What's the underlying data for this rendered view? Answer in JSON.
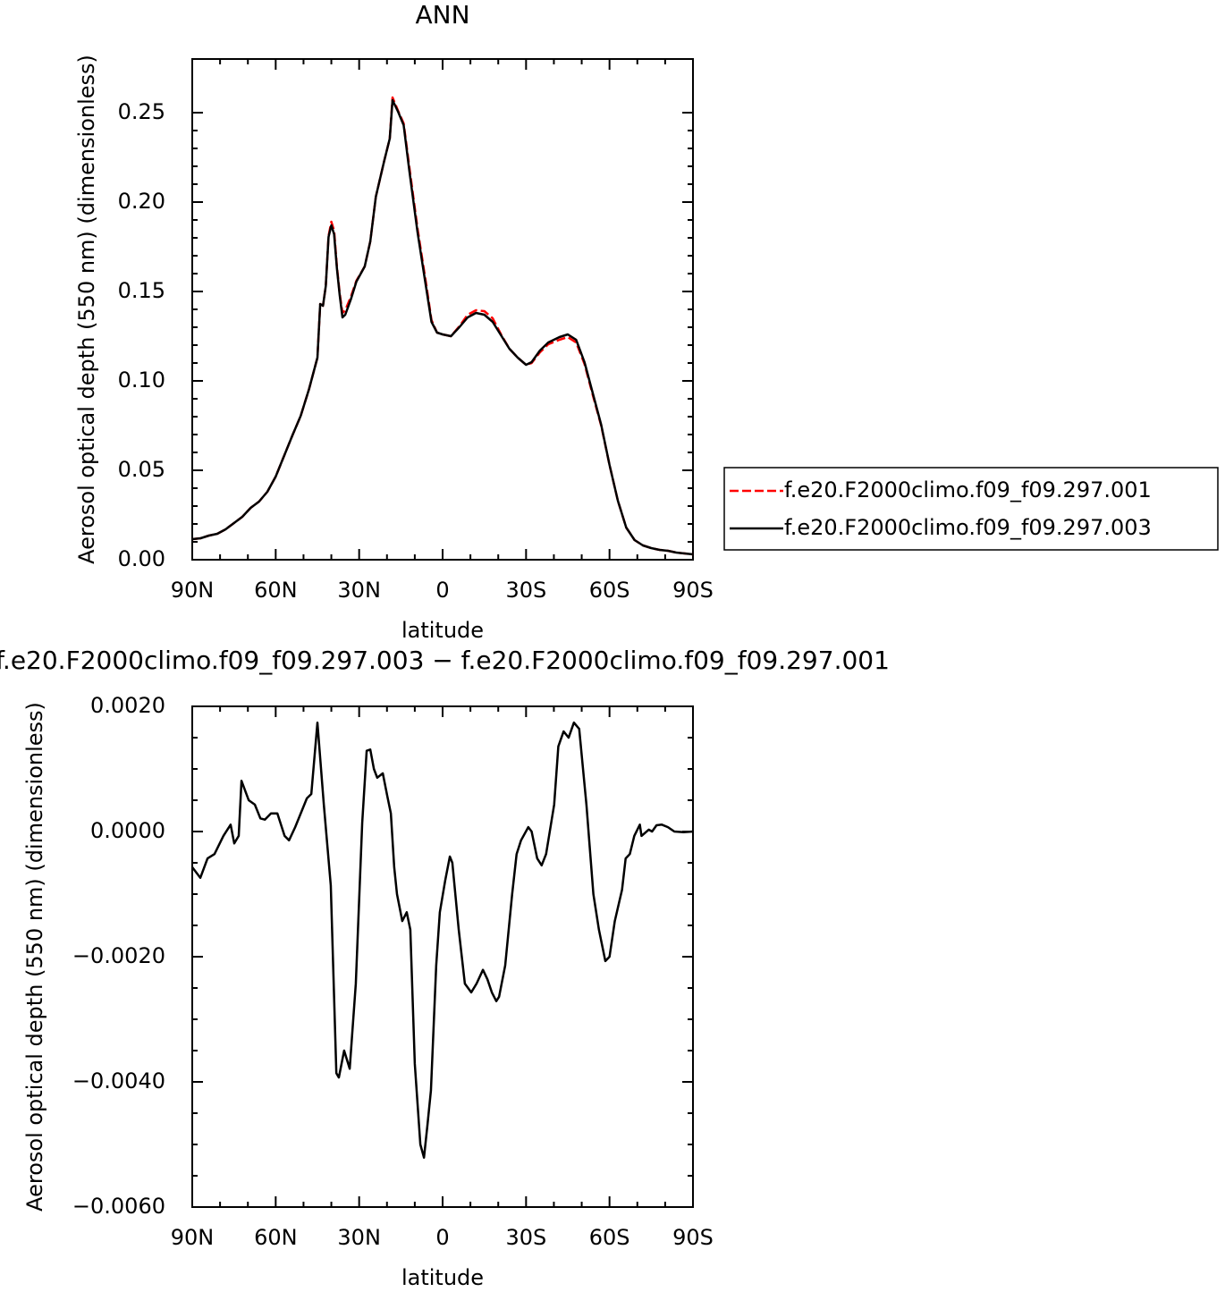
{
  "chart_data": [
    {
      "type": "line",
      "title": "ANN",
      "x_label": "latitude",
      "y_label": "Aerosol optical depth (550 nm) (dimensionless)",
      "x": [
        90,
        87,
        84,
        81,
        78,
        75,
        72,
        69,
        66,
        63,
        60,
        57,
        54,
        51,
        48,
        45,
        44,
        43,
        42,
        41,
        40,
        39,
        38,
        37,
        36,
        35,
        33,
        31,
        28,
        26,
        24,
        21,
        19,
        18,
        16,
        14,
        12,
        9,
        6,
        4,
        2,
        0,
        -3,
        -6,
        -9,
        -12,
        -15,
        -18,
        -21,
        -24,
        -27,
        -30,
        -32,
        -35,
        -38,
        -42,
        -45,
        -48,
        -51,
        -54,
        -57,
        -60,
        -63,
        -66,
        -69,
        -72,
        -75,
        -78,
        -81,
        -84,
        -87,
        -90
      ],
      "series": [
        {
          "name": "f.e20.F2000climo.f09_f09.297.001",
          "color": "#ff0000",
          "dash": true,
          "values": [
            0.0115,
            0.012,
            0.0135,
            0.0145,
            0.017,
            0.0205,
            0.024,
            0.029,
            0.0325,
            0.038,
            0.0465,
            0.058,
            0.0695,
            0.0805,
            0.0955,
            0.113,
            0.143,
            0.142,
            0.153,
            0.181,
            0.189,
            0.184,
            0.164,
            0.149,
            0.138,
            0.1395,
            0.147,
            0.156,
            0.164,
            0.178,
            0.203,
            0.223,
            0.2355,
            0.2585,
            0.251,
            0.244,
            0.22,
            0.185,
            0.155,
            0.134,
            0.127,
            0.126,
            0.125,
            0.1305,
            0.137,
            0.1395,
            0.139,
            0.135,
            0.126,
            0.118,
            0.113,
            0.109,
            0.11,
            0.116,
            0.1205,
            0.123,
            0.1245,
            0.1215,
            0.1095,
            0.092,
            0.075,
            0.053,
            0.033,
            0.018,
            0.011,
            0.008,
            0.0065,
            0.0055,
            0.005,
            0.004,
            0.0035,
            0.003
          ]
        },
        {
          "name": "f.e20.F2000climo.f09_f09.297.003",
          "color": "#000000",
          "dash": false,
          "values": [
            0.0115,
            0.012,
            0.0135,
            0.0145,
            0.017,
            0.0205,
            0.024,
            0.029,
            0.0325,
            0.038,
            0.0465,
            0.058,
            0.0695,
            0.0805,
            0.0955,
            0.113,
            0.143,
            0.142,
            0.153,
            0.1805,
            0.187,
            0.182,
            0.163,
            0.148,
            0.1355,
            0.137,
            0.1455,
            0.1555,
            0.164,
            0.178,
            0.203,
            0.223,
            0.2355,
            0.257,
            0.2505,
            0.243,
            0.218,
            0.183,
            0.153,
            0.133,
            0.127,
            0.126,
            0.125,
            0.13,
            0.1355,
            0.138,
            0.137,
            0.133,
            0.1255,
            0.118,
            0.113,
            0.109,
            0.1105,
            0.117,
            0.1215,
            0.1245,
            0.126,
            0.123,
            0.1105,
            0.093,
            0.0755,
            0.053,
            0.033,
            0.018,
            0.011,
            0.008,
            0.0065,
            0.0055,
            0.005,
            0.004,
            0.0035,
            0.003
          ]
        }
      ],
      "xlim": [
        90,
        -90
      ],
      "xticks": [
        {
          "value": 90,
          "label": "90N"
        },
        {
          "value": 60,
          "label": "60N"
        },
        {
          "value": 30,
          "label": "30N"
        },
        0,
        {
          "value": -30,
          "label": "30S"
        },
        {
          "value": -60,
          "label": "60S"
        },
        {
          "value": -90,
          "label": "90S"
        }
      ],
      "ylim": [
        0,
        0.28
      ],
      "yticks": [
        {
          "value": 0,
          "label": "0.00"
        },
        {
          "value": 0.05,
          "label": "0.05"
        },
        {
          "value": 0.1,
          "label": "0.10"
        },
        {
          "value": 0.15,
          "label": "0.15"
        },
        {
          "value": 0.2,
          "label": "0.20"
        },
        {
          "value": 0.25,
          "label": "0.25"
        }
      ],
      "legend": "right"
    },
    {
      "type": "line",
      "title": "f.e20.F2000climo.f09_f09.297.003 − f.e20.F2000climo.f09_f09.297.001",
      "x_label": "latitude",
      "y_label": "Aerosol optical depth (550 nm) (dimensionless)",
      "x": [
        90,
        87.1,
        84.5,
        82,
        78.8,
        76.2,
        74.9,
        73.3,
        72.3,
        69.7,
        67.5,
        65.5,
        63.9,
        61.7,
        59.4,
        56.8,
        55.2,
        53,
        48.8,
        47.2,
        45,
        42.7,
        40.2,
        38.2,
        37.3,
        35.4,
        33.4,
        31.2,
        28.9,
        27.3,
        26,
        24.7,
        23.5,
        21.5,
        19.9,
        18.6,
        17.4,
        16.4,
        14.5,
        12.9,
        11.6,
        10,
        8,
        6.7,
        5.5,
        4.2,
        2.3,
        1,
        -0.9,
        -2.6,
        -3.5,
        -5.8,
        -8,
        -10.3,
        -12.2,
        -14.5,
        -16.1,
        -17.7,
        -19.3,
        -20.3,
        -22.5,
        -25,
        -26.6,
        -28.2,
        -30.8,
        -32,
        -34,
        -35.6,
        -37.2,
        -40.1,
        -41.6,
        -43.5,
        -45.3,
        -47.2,
        -49.1,
        -51.7,
        -54.2,
        -56.2,
        -58.5,
        -60,
        -61.9,
        -64.5,
        -65.8,
        -67.3,
        -68.9,
        -70.9,
        -71.5,
        -74.1,
        -75.3,
        -76.9,
        -78.8,
        -81,
        -83.3,
        -86.5,
        -90
      ],
      "color": "#000000",
      "values": [
        -0.00057,
        -0.00074,
        -0.00043,
        -0.00036,
        -7e-05,
        0.00011,
        -0.00019,
        -7e-05,
        0.00081,
        0.0005,
        0.00043,
        0.00021,
        0.00019,
        0.00029,
        0.00029,
        -7e-05,
        -0.00014,
        7e-05,
        0.00053,
        0.0006,
        0.00174,
        0.00043,
        -0.00086,
        -0.00386,
        -0.00393,
        -0.0035,
        -0.00379,
        -0.00243,
        0.00014,
        0.00129,
        0.00131,
        0.001,
        0.00086,
        0.00093,
        0.00057,
        0.00029,
        -0.00057,
        -0.001,
        -0.00143,
        -0.00129,
        -0.00157,
        -0.00371,
        -0.005,
        -0.00521,
        -0.00471,
        -0.00414,
        -0.00214,
        -0.00129,
        -0.00079,
        -0.0004,
        -0.0005,
        -0.00157,
        -0.00243,
        -0.00257,
        -0.00243,
        -0.00221,
        -0.00236,
        -0.00257,
        -0.00271,
        -0.00264,
        -0.00214,
        -0.001,
        -0.00036,
        -0.00014,
        7e-05,
        0,
        -0.00043,
        -0.00054,
        -0.00036,
        0.00043,
        0.00136,
        0.0016,
        0.0015,
        0.00174,
        0.00164,
        0.00043,
        -0.001,
        -0.00157,
        -0.00207,
        -0.002,
        -0.00143,
        -0.00093,
        -0.00043,
        -0.00036,
        -7e-05,
        0.00011,
        -7e-05,
        3e-05,
        0,
        0.0001,
        0.00011,
        7e-05,
        0,
        -1e-05,
        0
      ],
      "xlim": [
        90,
        -90
      ],
      "xticks": [
        {
          "value": 90,
          "label": "90N"
        },
        {
          "value": 60,
          "label": "60N"
        },
        {
          "value": 30,
          "label": "30N"
        },
        0,
        {
          "value": -30,
          "label": "30S"
        },
        {
          "value": -60,
          "label": "60S"
        },
        {
          "value": -90,
          "label": "90S"
        }
      ],
      "ylim": [
        -0.006,
        0.002
      ],
      "yticks": [
        {
          "value": -0.006,
          "label": "−0.0060"
        },
        {
          "value": -0.004,
          "label": "−0.0040"
        },
        {
          "value": -0.002,
          "label": "−0.0020"
        },
        {
          "value": 0,
          "label": "0.0000"
        },
        {
          "value": 0.002,
          "label": "0.0020"
        }
      ]
    }
  ]
}
